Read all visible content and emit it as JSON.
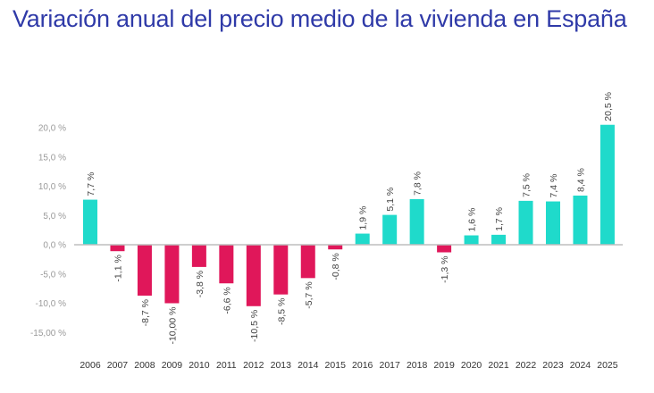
{
  "title": "Variación anual del precio medio de la vivienda en España",
  "chart_data": {
    "type": "bar",
    "title": "Variación anual del precio medio de la vivienda en España",
    "xlabel": "",
    "ylabel": "",
    "ylim": [
      -17,
      22
    ],
    "yticks": [
      20,
      15,
      10,
      5,
      0,
      -5,
      -10,
      -15
    ],
    "ytick_labels": [
      "20,0 %",
      "15,0 %",
      "10,0 %",
      "5,0 %",
      "0,0 %",
      "-5,0 %",
      "-10,0 %",
      "-15,00 %"
    ],
    "grid": false,
    "categories": [
      "2006",
      "2007",
      "2008",
      "2009",
      "2010",
      "2011",
      "2012",
      "2013",
      "2014",
      "2015",
      "2016",
      "2017",
      "2018",
      "2019",
      "2020",
      "2021",
      "2022",
      "2023",
      "2024",
      "2025"
    ],
    "values": [
      7.7,
      -1.1,
      -8.7,
      -10.0,
      -3.8,
      -6.6,
      -10.5,
      -8.5,
      -5.7,
      -0.8,
      1.9,
      5.1,
      7.8,
      -1.3,
      1.6,
      1.7,
      7.5,
      7.4,
      8.4,
      20.5
    ],
    "data_labels": [
      "7,7 %",
      "-1,1  %",
      "-8,7 %",
      "-10,00 %",
      "-3,8 %",
      "-6,6  %",
      "-10,5 %",
      "-8,5 %",
      "-5,7 %",
      "-0,8 %",
      "1,9 %",
      "5,1 %",
      "7,8 %",
      "-1,3 %",
      "1,6 %",
      "1,7 %",
      "7,5 %",
      "7,4 %",
      "8,4 %",
      "20,5 %"
    ],
    "colors": {
      "positive": "#1fdacb",
      "negative": "#e0175a",
      "axis": "#bdbdbd"
    }
  }
}
